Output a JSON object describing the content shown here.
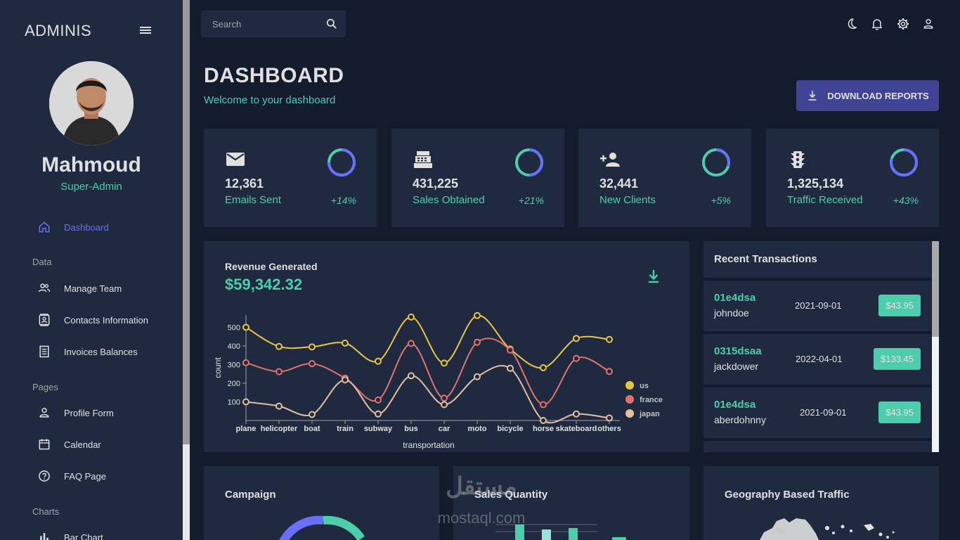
{
  "sidebar": {
    "brand": "ADMINIS",
    "user": {
      "name": "Mahmoud",
      "role": "Super-Admin"
    },
    "items": [
      {
        "label": "Dashboard",
        "icon": "home-icon",
        "active": true
      },
      {
        "section": "Data"
      },
      {
        "label": "Manage Team",
        "icon": "people-icon"
      },
      {
        "label": "Contacts Information",
        "icon": "contacts-icon"
      },
      {
        "label": "Invoices Balances",
        "icon": "receipt-icon"
      },
      {
        "section": "Pages"
      },
      {
        "label": "Profile Form",
        "icon": "person-icon"
      },
      {
        "label": "Calendar",
        "icon": "calendar-icon"
      },
      {
        "label": "FAQ Page",
        "icon": "help-icon"
      },
      {
        "section": "Charts"
      },
      {
        "label": "Bar Chart",
        "icon": "bar-chart-icon"
      }
    ]
  },
  "topbar": {
    "search_placeholder": "Search",
    "icons": [
      "dark-mode-icon",
      "notifications-icon",
      "settings-icon",
      "user-icon"
    ]
  },
  "header": {
    "title": "DASHBOARD",
    "subtitle": "Welcome to your dashboard",
    "download_label": "DOWNLOAD REPORTS"
  },
  "stats": [
    {
      "value": "12,361",
      "label": "Emails Sent",
      "pct": "+14%",
      "progress": 0.75,
      "icon": "email-icon"
    },
    {
      "value": "431,225",
      "label": "Sales Obtained",
      "pct": "+21%",
      "progress": 0.5,
      "icon": "point-of-sale-icon"
    },
    {
      "value": "32,441",
      "label": "New Clients",
      "pct": "+5%",
      "progress": 0.3,
      "icon": "person-add-icon"
    },
    {
      "value": "1,325,134",
      "label": "Traffic Received",
      "pct": "+43%",
      "progress": 0.8,
      "icon": "traffic-icon"
    }
  ],
  "revenue": {
    "title": "Revenue Generated",
    "amount": "$59,342.32"
  },
  "chart_data": {
    "type": "line",
    "xlabel": "transportation",
    "ylabel": "count",
    "categories": [
      "plane",
      "helicopter",
      "boat",
      "train",
      "subway",
      "bus",
      "car",
      "moto",
      "bicycle",
      "horse",
      "skateboard",
      "others"
    ],
    "yticks": [
      100,
      200,
      300,
      400,
      500
    ],
    "series": [
      {
        "name": "us",
        "color": "#e8c547",
        "values": [
          500,
          397,
          395,
          415,
          318,
          555,
          308,
          563,
          383,
          283,
          440,
          435
        ]
      },
      {
        "name": "france",
        "color": "#e2726e",
        "values": [
          310,
          262,
          305,
          227,
          110,
          413,
          120,
          420,
          378,
          85,
          333,
          263
        ]
      },
      {
        "name": "japan",
        "color": "#e4bfa0",
        "values": [
          100,
          77,
          32,
          218,
          35,
          240,
          85,
          235,
          280,
          0,
          35,
          13
        ]
      }
    ],
    "legend": "right"
  },
  "transactions": {
    "title": "Recent Transactions",
    "rows": [
      {
        "txId": "01e4dsa",
        "user": "johndoe",
        "date": "2021-09-01",
        "cost": "$43.95"
      },
      {
        "txId": "0315dsaa",
        "user": "jackdower",
        "date": "2022-04-01",
        "cost": "$133.45"
      },
      {
        "txId": "01e4dsa",
        "user": "aberdohnny",
        "date": "2021-09-01",
        "cost": "$43.95"
      }
    ]
  },
  "bottom": {
    "campaign_title": "Campaign",
    "sales_title": "Sales Quantity",
    "geo_title": "Geography Based Traffic"
  },
  "watermark": {
    "arabic": "مستقل",
    "latin": "mostaql.com"
  }
}
